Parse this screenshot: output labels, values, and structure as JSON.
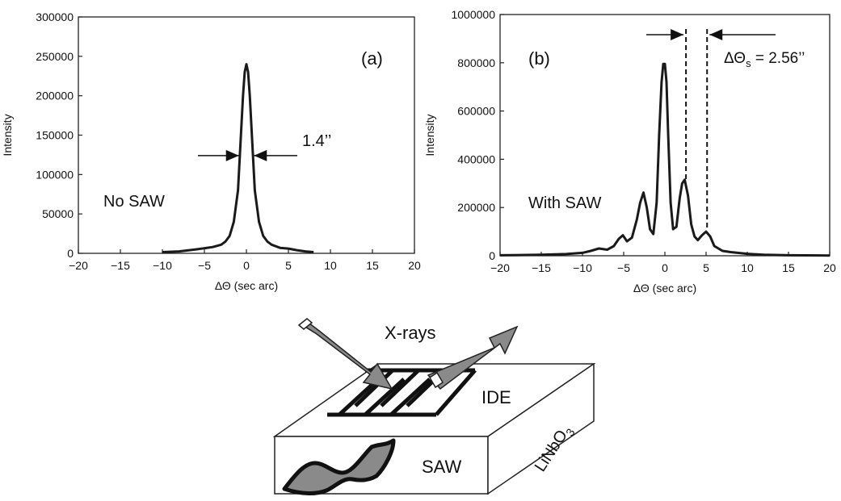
{
  "chart_data": [
    {
      "type": "line",
      "panel": "(a)",
      "ylabel": "Intensity",
      "xlabel": "ΔΘ (sec arc)",
      "xlim": [
        -20,
        20
      ],
      "ylim": [
        0,
        300000
      ],
      "x_ticks": [
        "−20",
        "−15",
        "−10",
        "−5",
        "0",
        "5",
        "10",
        "15",
        "20"
      ],
      "y_ticks": [
        "0",
        "50000",
        "100000",
        "150000",
        "200000",
        "250000",
        "300000"
      ],
      "annotation": "No SAW",
      "fwhm_label": "1.4’’",
      "fwhm_height": 124000,
      "series": [
        {
          "x": [
            -10,
            -8,
            -6,
            -5,
            -4,
            -3,
            -2.5,
            -2,
            -1.5,
            -1,
            -0.7,
            -0.4,
            -0.2,
            0,
            0.2,
            0.4,
            0.7,
            1,
            1.5,
            2,
            2.5,
            3,
            4,
            5,
            6,
            7,
            8
          ],
          "y": [
            1500,
            2500,
            5000,
            6500,
            8000,
            11000,
            15000,
            22000,
            40000,
            80000,
            140000,
            200000,
            230000,
            240000,
            230000,
            200000,
            140000,
            80000,
            40000,
            22000,
            15000,
            11000,
            7000,
            6000,
            4000,
            2500,
            1500
          ]
        }
      ]
    },
    {
      "type": "line",
      "panel": "(b)",
      "ylabel": "Intensity",
      "xlabel": "ΔΘ (sec arc)",
      "xlim": [
        -20,
        20
      ],
      "ylim": [
        0,
        1000000
      ],
      "x_ticks": [
        "−20",
        "−15",
        "−10",
        "−5",
        "0",
        "5",
        "10",
        "15",
        "20"
      ],
      "y_ticks": [
        "0",
        "200000",
        "400000",
        "600000",
        "800000",
        "1000000"
      ],
      "annotation": "With SAW",
      "spacing_label_main": "ΔΘ",
      "spacing_label_sub": "s",
      "spacing_label_value": " = 2.56’’",
      "dashed_x": [
        2.56,
        5.12
      ],
      "series": [
        {
          "x": [
            -20,
            -15,
            -12,
            -10,
            -9,
            -8,
            -7,
            -6.2,
            -5.6,
            -5.1,
            -4.6,
            -4,
            -3.4,
            -3,
            -2.6,
            -2.2,
            -1.8,
            -1.4,
            -1,
            -0.7,
            -0.4,
            -0.2,
            0,
            0.2,
            0.4,
            0.7,
            1,
            1.4,
            1.8,
            2.1,
            2.4,
            2.8,
            3.2,
            3.6,
            4,
            4.5,
            5,
            5.5,
            6,
            7,
            8,
            10,
            12,
            15,
            20
          ],
          "y": [
            2000,
            4000,
            7000,
            12000,
            20000,
            30000,
            25000,
            40000,
            70000,
            85000,
            60000,
            75000,
            150000,
            220000,
            262000,
            200000,
            110000,
            90000,
            220000,
            500000,
            720000,
            795000,
            795000,
            720000,
            500000,
            220000,
            110000,
            120000,
            240000,
            300000,
            315000,
            250000,
            130000,
            80000,
            65000,
            85000,
            100000,
            80000,
            40000,
            20000,
            15000,
            8000,
            4000,
            2000,
            1000
          ]
        }
      ]
    }
  ],
  "diagram": {
    "xrays_label": "X-rays",
    "ide_label": "IDE",
    "saw_label": "SAW",
    "substrate_main": "LiNbO",
    "substrate_sub": "3"
  }
}
